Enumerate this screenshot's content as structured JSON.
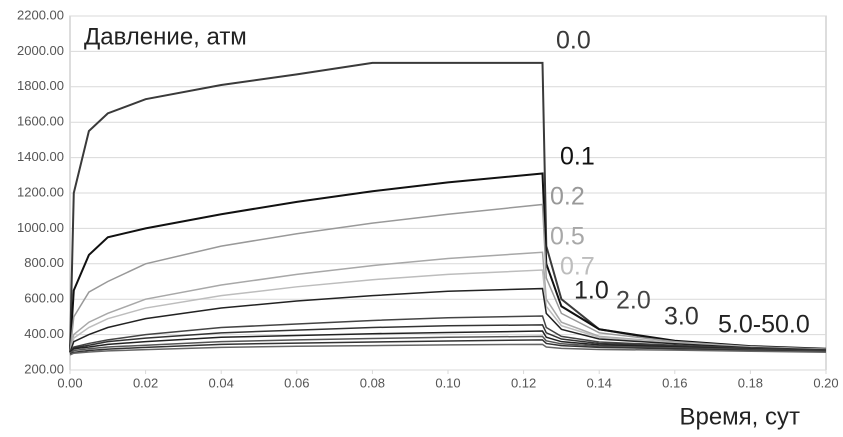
{
  "chart_data": {
    "type": "line",
    "title": "Давление, атм",
    "x_label": "Время, сут",
    "xlim": [
      0,
      0.2
    ],
    "ylim": [
      200,
      2200
    ],
    "xticks": [
      {
        "value": 0,
        "label": "0.00"
      },
      {
        "value": 0.02,
        "label": "0.02"
      },
      {
        "value": 0.04,
        "label": "0.04"
      },
      {
        "value": 0.06,
        "label": "0.06"
      },
      {
        "value": 0.08,
        "label": "0.08"
      },
      {
        "value": 0.1,
        "label": "0.10"
      },
      {
        "value": 0.12,
        "label": "0.12"
      },
      {
        "value": 0.14,
        "label": "0.14"
      },
      {
        "value": 0.16,
        "label": "0.16"
      },
      {
        "value": 0.18,
        "label": "0.18"
      },
      {
        "value": 0.2,
        "label": "0.20"
      }
    ],
    "yticks": [
      {
        "value": 200,
        "label": "200.00"
      },
      {
        "value": 400,
        "label": "400.00"
      },
      {
        "value": 600,
        "label": "600.00"
      },
      {
        "value": 800,
        "label": "800.00"
      },
      {
        "value": 1000,
        "label": "1000.00"
      },
      {
        "value": 1200,
        "label": "1200.00"
      },
      {
        "value": 1400,
        "label": "1400.00"
      },
      {
        "value": 1600,
        "label": "1600.00"
      },
      {
        "value": 1800,
        "label": "1800.00"
      },
      {
        "value": 2000,
        "label": "2000.00"
      },
      {
        "value": 2200,
        "label": "2200.00"
      }
    ],
    "grid": true,
    "x": [
      0,
      0.001,
      0.005,
      0.01,
      0.02,
      0.04,
      0.06,
      0.08,
      0.1,
      0.125,
      0.126,
      0.13,
      0.14,
      0.16,
      0.18,
      0.2
    ],
    "series": [
      {
        "name": "0.0",
        "color": "#3a3a3a",
        "values": [
          300,
          1200,
          1550,
          1650,
          1730,
          1810,
          1870,
          1935,
          1935,
          1935,
          900,
          600,
          430,
          360,
          330,
          315
        ]
      },
      {
        "name": "0.1",
        "color": "#111111",
        "values": [
          300,
          650,
          850,
          950,
          1000,
          1080,
          1150,
          1210,
          1260,
          1310,
          800,
          560,
          430,
          365,
          335,
          320
        ]
      },
      {
        "name": "0.2",
        "color": "#999999",
        "values": [
          300,
          500,
          640,
          700,
          800,
          900,
          970,
          1030,
          1080,
          1135,
          720,
          520,
          410,
          360,
          332,
          318
        ]
      },
      {
        "name": "0.5",
        "color": "#a8a8a8",
        "values": [
          300,
          400,
          470,
          520,
          600,
          680,
          740,
          790,
          830,
          865,
          600,
          470,
          390,
          355,
          330,
          316
        ]
      },
      {
        "name": "0.7",
        "color": "#bdbdbd",
        "values": [
          300,
          380,
          440,
          490,
          550,
          620,
          670,
          710,
          740,
          765,
          560,
          450,
          385,
          352,
          328,
          315
        ]
      },
      {
        "name": "1.0",
        "color": "#222222",
        "values": [
          300,
          360,
          400,
          440,
          490,
          550,
          590,
          620,
          645,
          660,
          520,
          430,
          375,
          348,
          326,
          314
        ]
      },
      {
        "name": "2.0",
        "color": "#444444",
        "values": [
          300,
          330,
          350,
          370,
          400,
          440,
          460,
          480,
          495,
          505,
          440,
          390,
          358,
          340,
          322,
          312
        ]
      },
      {
        "name": "3.0",
        "color": "#333333",
        "values": [
          300,
          325,
          340,
          360,
          380,
          410,
          425,
          440,
          450,
          455,
          410,
          375,
          350,
          335,
          320,
          310
        ]
      },
      {
        "name": "5.0-50.0",
        "color": "#222222",
        "values": [
          300,
          320,
          330,
          345,
          360,
          385,
          395,
          405,
          412,
          420,
          385,
          360,
          342,
          330,
          318,
          308
        ]
      },
      {
        "color": "#555555",
        "values": [
          295,
          310,
          320,
          330,
          340,
          360,
          370,
          378,
          385,
          390,
          365,
          348,
          335,
          325,
          315,
          306
        ]
      },
      {
        "color": "#333333",
        "values": [
          290,
          300,
          310,
          318,
          328,
          345,
          352,
          358,
          364,
          370,
          350,
          338,
          328,
          320,
          312,
          304
        ]
      },
      {
        "color": "#666666",
        "values": [
          285,
          295,
          302,
          308,
          315,
          328,
          334,
          338,
          342,
          345,
          330,
          322,
          316,
          312,
          306,
          300
        ]
      }
    ]
  }
}
